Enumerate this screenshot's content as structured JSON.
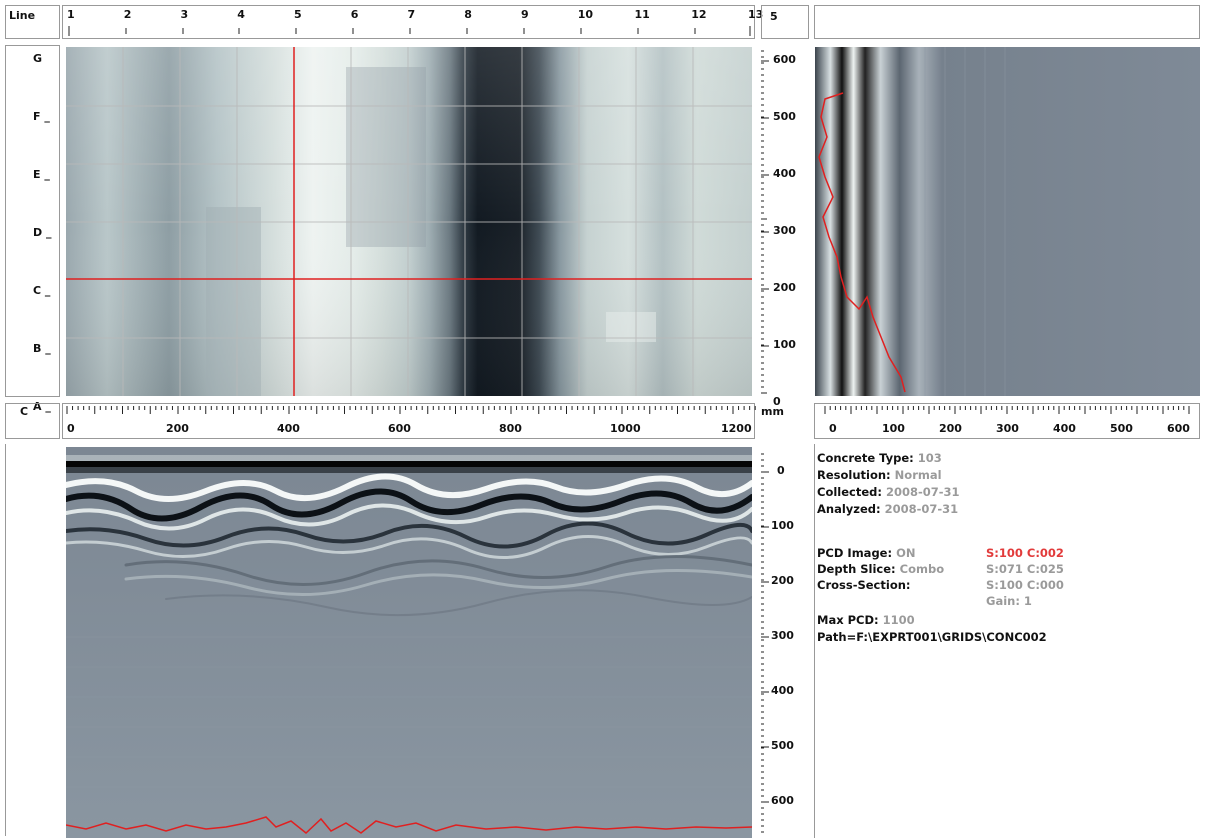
{
  "header": {
    "line_label": "Line",
    "line_numbers": [
      "1",
      "2",
      "3",
      "4",
      "5",
      "6",
      "7",
      "8",
      "9",
      "10",
      "11",
      "12",
      "13"
    ],
    "current_line": "5"
  },
  "left_axis": {
    "row_labels": [
      "G",
      "F",
      "E",
      "D",
      "C",
      "B",
      "A"
    ]
  },
  "depth_axis_top": [
    "600",
    "500",
    "400",
    "300",
    "200",
    "100",
    "0"
  ],
  "cross_section_label": "C",
  "horizontal_axis": {
    "ticks": [
      "0",
      "200",
      "400",
      "600",
      "800",
      "1000",
      "1200"
    ],
    "unit": "mm"
  },
  "right_axis_ticks": [
    "0",
    "100",
    "200",
    "300",
    "400",
    "500",
    "600"
  ],
  "depth_axis_bottom": [
    "0",
    "100",
    "200",
    "300",
    "400",
    "500",
    "600"
  ],
  "info": {
    "concrete_type_label": "Concrete Type:",
    "concrete_type_value": "103",
    "resolution_label": "Resolution:",
    "resolution_value": "Normal",
    "collected_label": "Collected:",
    "collected_value": "2008-07-31",
    "analyzed_label": "Analyzed:",
    "analyzed_value": "2008-07-31",
    "pcd_image_label": "PCD Image:",
    "pcd_image_value": "ON",
    "pcd_image_sc": "S:100 C:002",
    "depth_slice_label": "Depth Slice:",
    "depth_slice_value": "Combo",
    "depth_slice_sc": "S:071 C:025",
    "cross_section_label": "Cross-Section:",
    "cross_section_sc": "S:100 C:000",
    "gain": "Gain: 1",
    "max_pcd_label": "Max PCD:",
    "max_pcd_value": "1100",
    "path": "Path=F:\\EXPRT001\\GRIDS\\CONC002"
  },
  "colors": {
    "cursor_red": "#e02020",
    "grid_line": "#c8c8c8",
    "radar_base": "#7c8794"
  }
}
